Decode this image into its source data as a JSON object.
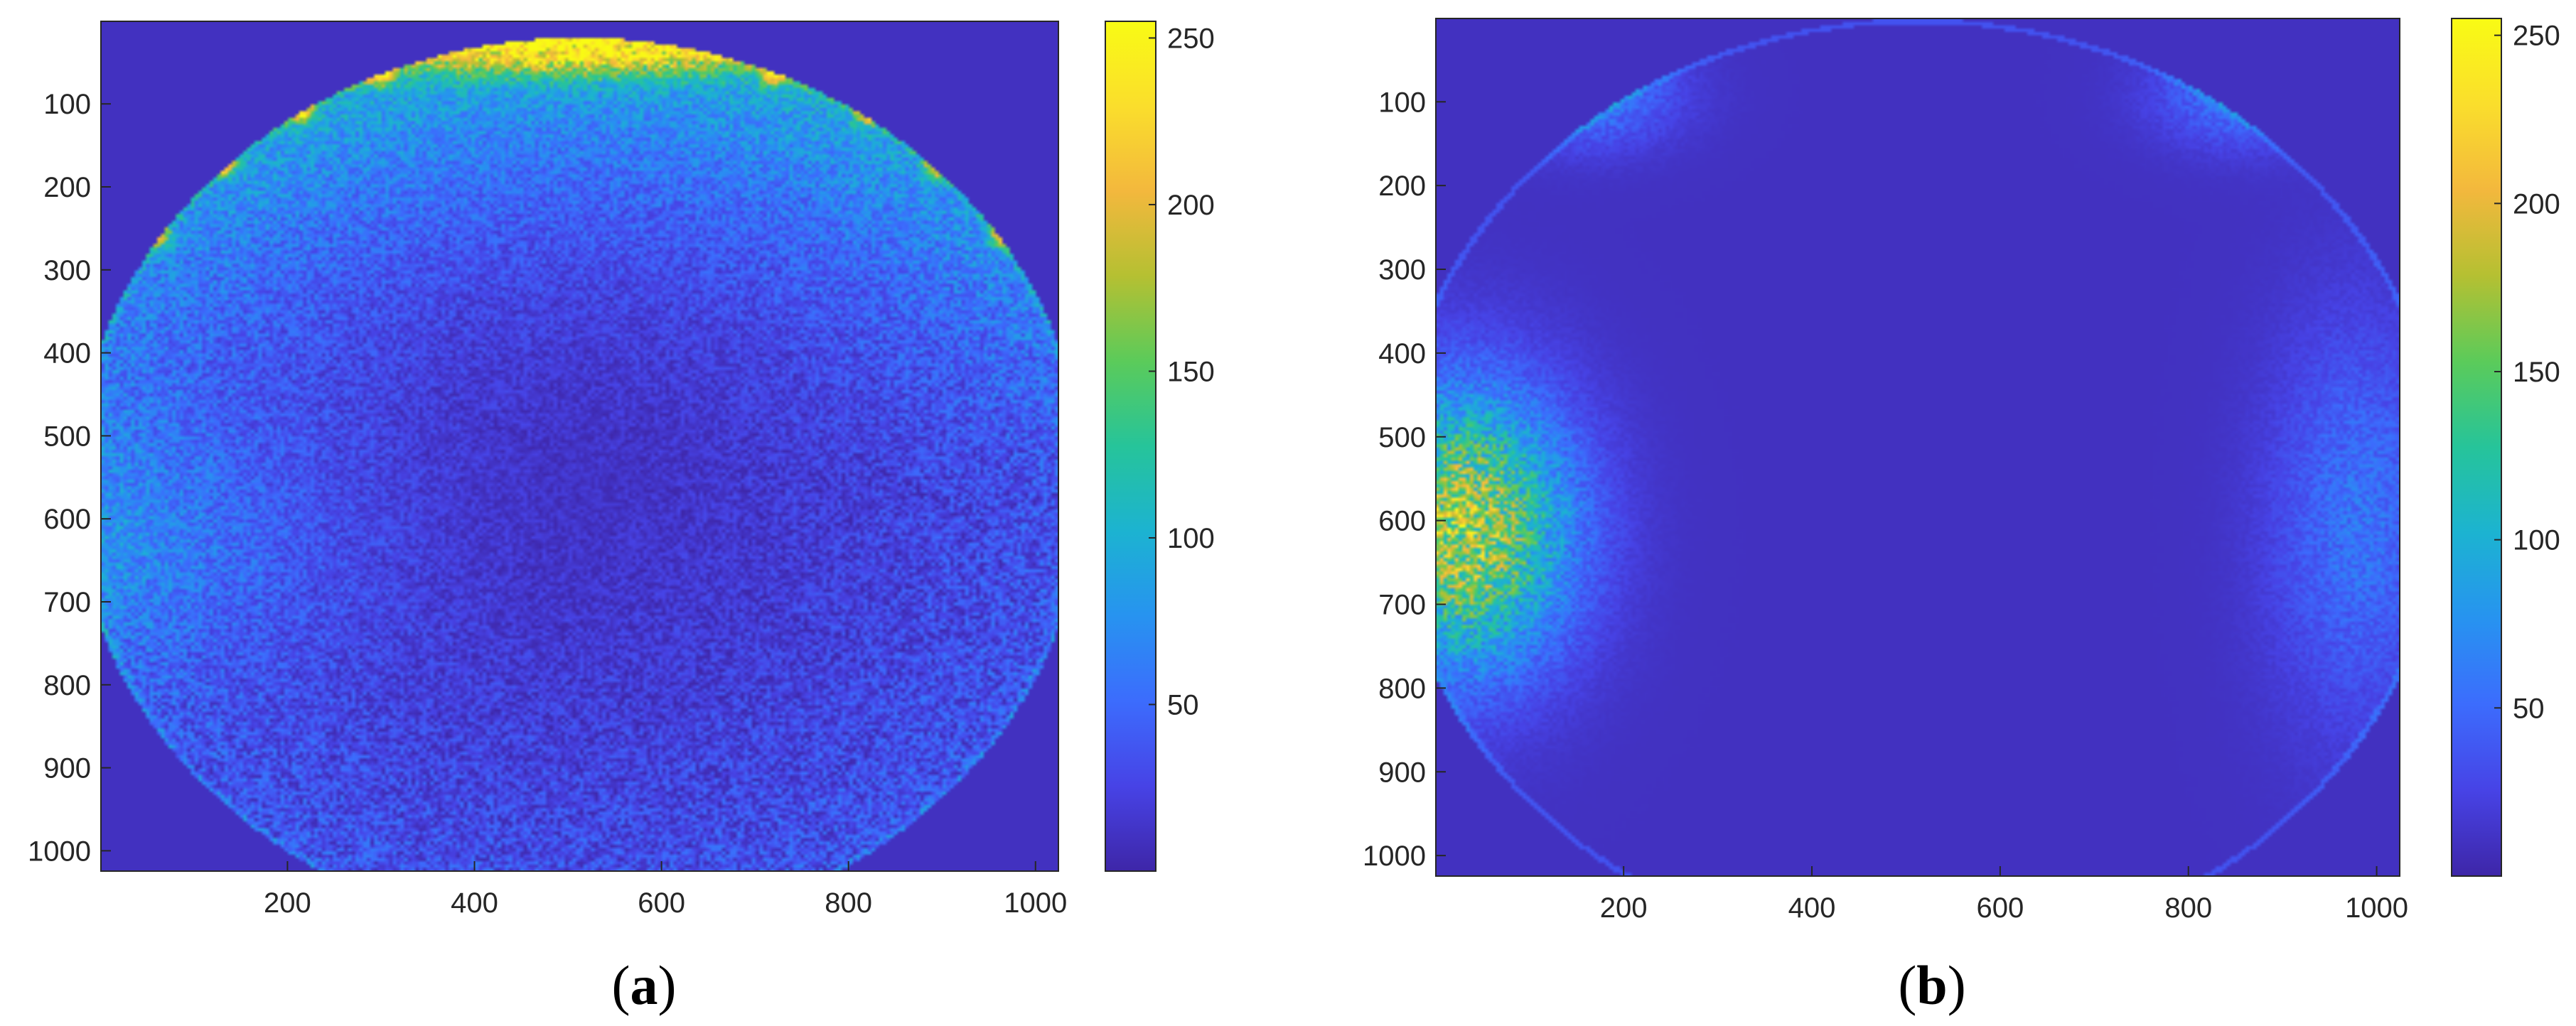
{
  "colormap": [
    "#3e26a8",
    "#4743e6",
    "#3c6cfd",
    "#2793f0",
    "#1cb3d1",
    "#26c49a",
    "#5bcb5a",
    "#b5c032",
    "#f3b83d",
    "#fade2c",
    "#f9fb14"
  ],
  "chart_data": [
    {
      "type": "heatmap",
      "panel_label": "a",
      "x_ticks": [
        200,
        400,
        600,
        800,
        1000
      ],
      "y_ticks": [
        100,
        200,
        300,
        400,
        500,
        600,
        700,
        800,
        900,
        1000
      ],
      "xlim": [
        1,
        1024
      ],
      "ylim": [
        1,
        1024
      ],
      "y_reversed": true,
      "grid": false,
      "colorbar": {
        "ticks": [
          50,
          100,
          150,
          200,
          250
        ],
        "range": [
          0,
          255
        ]
      },
      "image": {
        "disk": {
          "center": [
            512,
            560
          ],
          "radius": 540
        },
        "background_value": 10,
        "top_edge_value": 140,
        "left_edge_value": 95,
        "center_value": 12,
        "noise": 45,
        "hot_bands": [
          {
            "cx": 512,
            "cy": 35,
            "sx": 210,
            "sy": 30,
            "value": 150
          }
        ],
        "spots": [
          {
            "x": 60,
            "y": 260,
            "value": 120
          },
          {
            "x": 130,
            "y": 175,
            "value": 120
          },
          {
            "x": 215,
            "y": 110,
            "value": 120
          },
          {
            "x": 300,
            "y": 65,
            "value": 120
          },
          {
            "x": 720,
            "y": 65,
            "value": 120
          },
          {
            "x": 820,
            "y": 110,
            "value": 120
          },
          {
            "x": 895,
            "y": 175,
            "value": 120
          },
          {
            "x": 965,
            "y": 260,
            "value": 120
          }
        ]
      }
    },
    {
      "type": "heatmap",
      "panel_label": "b",
      "x_ticks": [
        200,
        400,
        600,
        800,
        1000
      ],
      "y_ticks": [
        100,
        200,
        300,
        400,
        500,
        600,
        700,
        800,
        900,
        1000
      ],
      "xlim": [
        1,
        1024
      ],
      "ylim": [
        1,
        1024
      ],
      "y_reversed": true,
      "grid": false,
      "colorbar": {
        "ticks": [
          50,
          100,
          150,
          200,
          250
        ],
        "range": [
          0,
          255
        ]
      },
      "image": {
        "disk": {
          "center": [
            512,
            560
          ],
          "radius": 560
        },
        "background_value": 10,
        "blobs": [
          {
            "cx": 30,
            "cy": 610,
            "sx": 110,
            "sy": 160,
            "value": 170
          },
          {
            "cx": 980,
            "cy": 600,
            "sx": 90,
            "sy": 230,
            "value": 45
          },
          {
            "cx": 160,
            "cy": 90,
            "sx": 90,
            "sy": 60,
            "value": 55
          },
          {
            "cx": 860,
            "cy": 90,
            "sx": 90,
            "sy": 60,
            "value": 50
          }
        ],
        "spots": [
          {
            "x": 290,
            "y": 15,
            "value": 140
          },
          {
            "x": 200,
            "y": 50,
            "value": 120
          },
          {
            "x": 130,
            "y": 120,
            "value": 110
          },
          {
            "x": 740,
            "y": 15,
            "value": 140
          },
          {
            "x": 830,
            "y": 50,
            "value": 120
          },
          {
            "x": 905,
            "y": 120,
            "value": 110
          }
        ]
      }
    }
  ]
}
